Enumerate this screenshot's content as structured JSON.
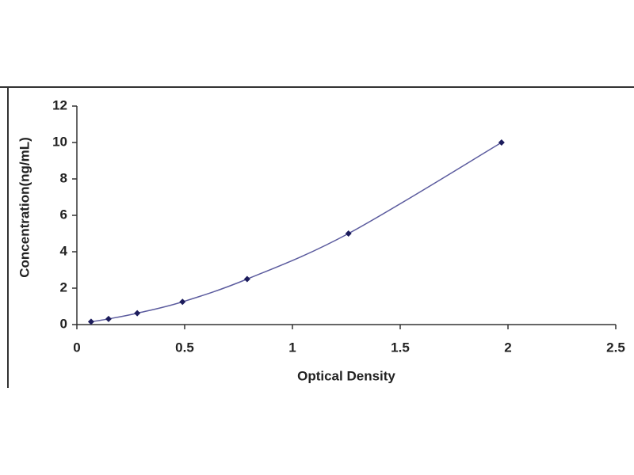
{
  "chart_data": {
    "type": "scatter",
    "x_label": "Optical Density",
    "y_label": "Concentration(ng/mL)",
    "x": [
      0.066,
      0.147,
      0.28,
      0.49,
      0.79,
      1.26,
      1.97
    ],
    "series": [
      {
        "color": "#1c1c5c",
        "line_color": "#5b5b9e",
        "values": [
          0.156,
          0.312,
          0.625,
          1.25,
          2.5,
          5,
          10
        ]
      }
    ],
    "xlim": [
      0,
      2.5
    ],
    "xticks": [
      0,
      0.5,
      1,
      1.5,
      2,
      2.5
    ],
    "ylim": [
      0,
      12
    ],
    "yticks": [
      0,
      2,
      4,
      6,
      8,
      10,
      12
    ]
  }
}
